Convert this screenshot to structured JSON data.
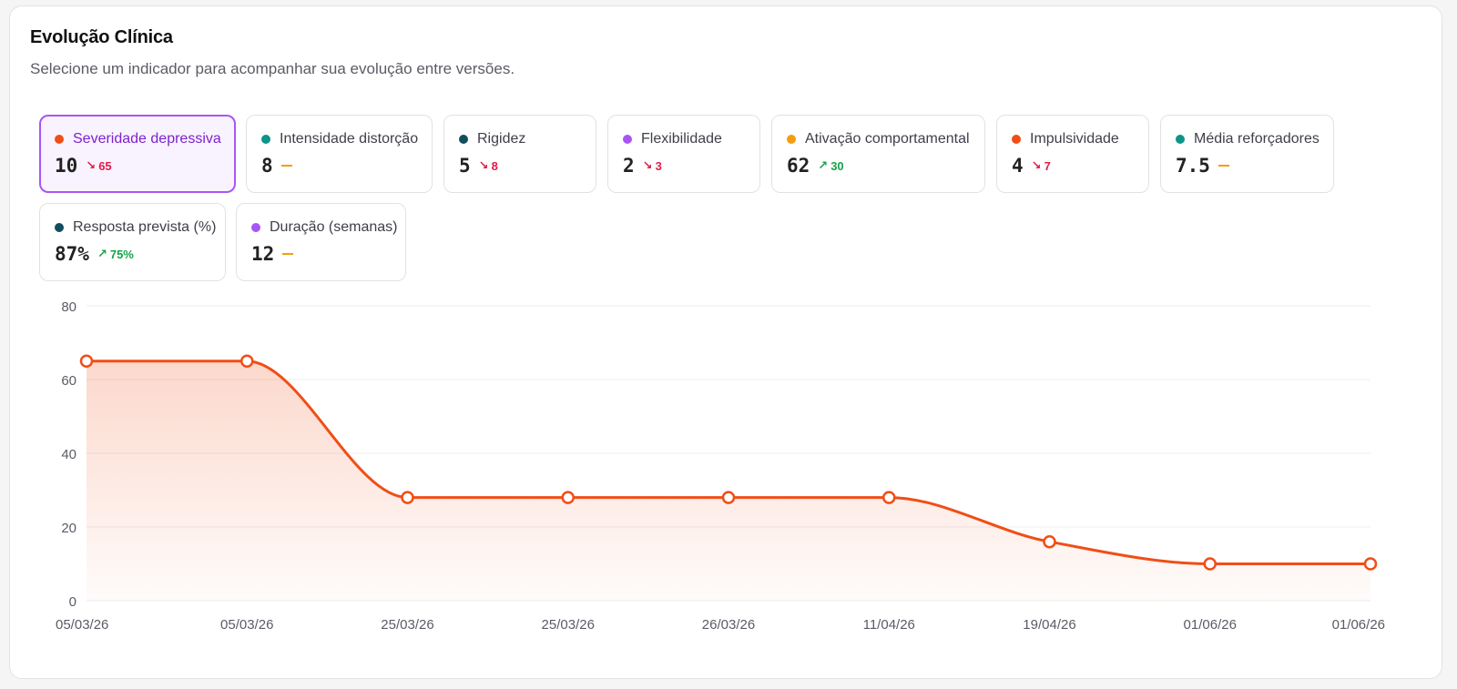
{
  "header": {
    "title": "Evolução Clínica",
    "subtitle": "Selecione um indicador para acompanhar sua evolução entre versões."
  },
  "indicators": [
    {
      "label": "Severidade depressiva",
      "value": "10",
      "delta": "65",
      "trend": "down",
      "dot_color": "#f04e16",
      "active": true
    },
    {
      "label": "Intensidade distorção",
      "value": "8",
      "delta": "",
      "trend": "flat",
      "dot_color": "#0d9488",
      "active": false
    },
    {
      "label": "Rigidez",
      "value": "5",
      "delta": "8",
      "trend": "down",
      "dot_color": "#134e5e",
      "active": false
    },
    {
      "label": "Flexibilidade",
      "value": "2",
      "delta": "3",
      "trend": "down",
      "dot_color": "#a855f7",
      "active": false
    },
    {
      "label": "Ativação comportamental",
      "value": "62",
      "delta": "30",
      "trend": "up",
      "dot_color": "#f59e0b",
      "active": false
    },
    {
      "label": "Impulsividade",
      "value": "4",
      "delta": "7",
      "trend": "down",
      "dot_color": "#f04e16",
      "active": false
    },
    {
      "label": "Média reforçadores",
      "value": "7.5",
      "delta": "",
      "trend": "flat",
      "dot_color": "#0d9488",
      "active": false
    },
    {
      "label": "Resposta prevista (%)",
      "value": "87%",
      "delta": "75%",
      "trend": "up",
      "dot_color": "#134e5e",
      "active": false
    },
    {
      "label": "Duração (semanas)",
      "value": "12",
      "delta": "",
      "trend": "flat",
      "dot_color": "#a855f7",
      "active": false
    }
  ],
  "colors": {
    "accent": "#a855f7",
    "line": "#f04e16",
    "down": "#e11d48",
    "up": "#16a34a",
    "flat": "#f59e0b"
  },
  "chart_data": {
    "type": "area",
    "x": [
      "05/03/26",
      "05/03/26",
      "25/03/26",
      "25/03/26",
      "26/03/26",
      "11/04/26",
      "19/04/26",
      "01/06/26",
      "01/06/26"
    ],
    "series": [
      {
        "values": [
          65,
          65,
          28,
          28,
          28,
          28,
          16,
          10,
          10
        ]
      }
    ],
    "yticks": [
      0,
      20,
      40,
      60,
      80
    ],
    "ylim": [
      0,
      80
    ],
    "grid": true
  }
}
